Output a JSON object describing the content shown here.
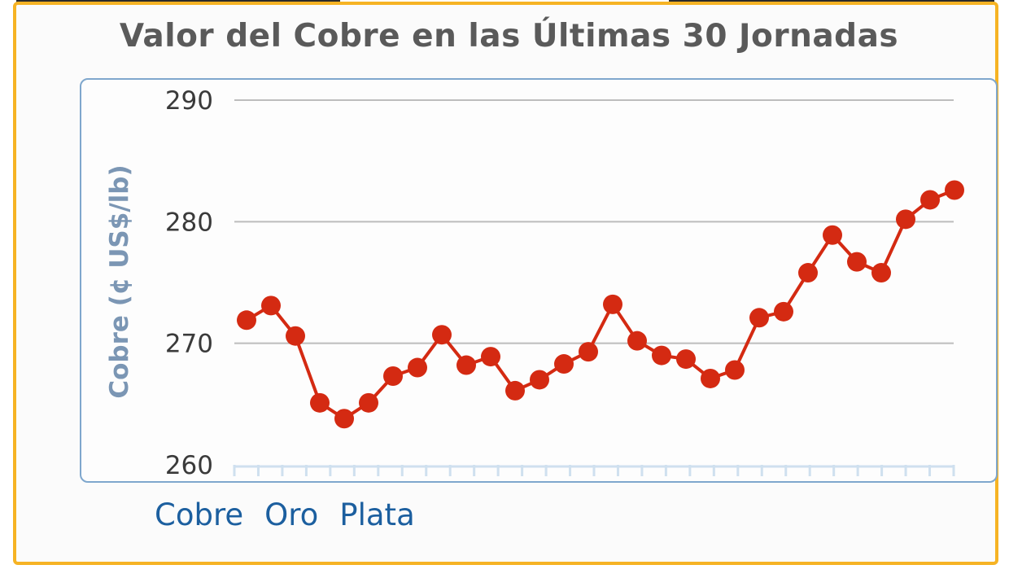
{
  "chart_data": {
    "type": "line",
    "title": "Valor del Cobre en las Últimas 30 Jornadas",
    "ylabel": "Cobre (¢ US$/lb)",
    "ylim": [
      260,
      290
    ],
    "yticks": [
      260,
      270,
      280,
      290
    ],
    "grid": true,
    "series": [
      {
        "color": "#d42a12",
        "values": [
          271.9,
          273.1,
          270.6,
          265.1,
          263.8,
          265.1,
          267.3,
          268.0,
          270.7,
          268.2,
          268.9,
          266.1,
          267.0,
          268.3,
          269.3,
          273.2,
          270.2,
          269.0,
          268.7,
          267.1,
          267.8,
          272.1,
          272.6,
          275.8,
          278.9,
          276.7,
          275.8,
          280.2,
          281.8,
          282.6
        ]
      }
    ]
  },
  "tabs": [
    {
      "label": "Cobre"
    },
    {
      "label": "Oro"
    },
    {
      "label": "Plata"
    }
  ],
  "colors": {
    "frame": "#f6b324",
    "plot_border": "#7fa7cd",
    "line": "#d42a12",
    "grid": "#bdbdbd",
    "axis_ticks": "#cfe0ef",
    "tab_text": "#1c5f9f"
  }
}
